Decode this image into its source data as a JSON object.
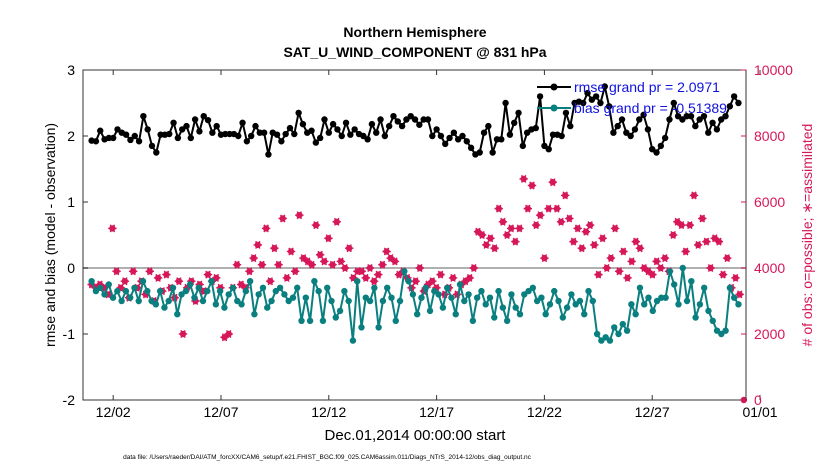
{
  "chart_data": {
    "type": "line",
    "title": [
      "Northern Hemisphere",
      "SAT_U_WIND_COMPONENT @ 831 hPa"
    ],
    "xlabel": "Dec.01,2014 00:00:00 start",
    "ylabel_left": "rmse and bias (model - observation)",
    "ylabel_right": "# of obs: o=possible; ∗=assimilated",
    "footer": "data file: /Users/raeder/DAI/ATM_forcXX/CAM6_setup/f.e21.FHIST_BGC.f09_025.CAM6assim.011/Diags_NTrS_2014-12/obs_diag_output.nc",
    "xlim": [
      0.6,
      31.35
    ],
    "x_ticks": [
      2,
      7,
      12,
      17,
      22,
      27,
      32
    ],
    "x_tick_labels": [
      "12/02",
      "12/07",
      "12/12",
      "12/17",
      "12/22",
      "12/27",
      "01/01"
    ],
    "ylim_left": [
      -2,
      3
    ],
    "y_ticks_left": [
      -2,
      -1,
      0,
      1,
      2,
      3
    ],
    "y_tick_labels_left": [
      "-2",
      "-1",
      "0",
      "1",
      "2",
      "3"
    ],
    "ylim_right": [
      0,
      10000
    ],
    "y_ticks_right": [
      0,
      2000,
      4000,
      6000,
      8000,
      10000
    ],
    "y_tick_labels_right": [
      "0",
      "2000",
      "4000",
      "6000",
      "8000",
      "10000"
    ],
    "zero_line": 0,
    "colors": {
      "rmse": "#000000",
      "bias": "#0a7f7f",
      "obs": "#d6185a",
      "zero": "#b0b0b0"
    },
    "legend": [
      {
        "label": "rmse grand pr = 2.0971",
        "series": "rmse"
      },
      {
        "label": "bias grand pr = -0.51389",
        "series": "bias"
      }
    ],
    "legend_position": "top-right",
    "series": [
      {
        "name": "rmse",
        "axis": "left",
        "values": [
          1.93,
          1.92,
          2.08,
          1.95,
          1.97,
          1.97,
          2.1,
          2.05,
          2.02,
          1.94,
          2.0,
          1.92,
          2.3,
          2.1,
          1.85,
          1.75,
          2.02,
          2.02,
          2.03,
          2.2,
          1.97,
          2.1,
          2.15,
          1.97,
          2.25,
          2.07,
          2.3,
          2.24,
          2.05,
          2.15,
          2.02,
          2.03,
          2.03,
          2.03,
          2.0,
          2.2,
          1.92,
          2.0,
          2.15,
          2.05,
          2.05,
          1.72,
          2.05,
          2.02,
          1.92,
          2.03,
          2.12,
          2.03,
          2.35,
          2.18,
          2.05,
          2.08,
          1.9,
          1.97,
          2.25,
          2.05,
          2.18,
          2.1,
          2.0,
          2.2,
          2.02,
          2.1,
          2.03,
          2.0,
          1.95,
          2.18,
          2.05,
          2.25,
          2.0,
          2.15,
          2.3,
          2.22,
          2.15,
          2.25,
          2.3,
          2.25,
          2.17,
          2.25,
          2.25,
          2.0,
          2.1,
          2.0,
          1.88,
          1.97,
          2.05,
          1.95,
          2.0,
          1.92,
          1.82,
          1.72,
          1.75,
          2.05,
          2.15,
          1.75,
          1.95,
          1.95,
          2.5,
          2.02,
          2.2,
          2.35,
          1.85,
          2.05,
          2.1,
          2.12,
          2.6,
          1.85,
          1.8,
          2.02,
          2.02,
          2.0,
          2.35,
          2.15,
          2.5,
          2.52,
          2.5,
          2.65,
          2.55,
          2.6,
          2.5,
          2.75,
          2.45,
          2.05,
          2.15,
          2.25,
          2.05,
          2.0,
          2.1,
          2.25,
          2.32,
          2.1,
          1.8,
          1.75,
          1.85,
          1.97,
          2.25,
          2.5,
          2.3,
          2.25,
          2.3,
          2.3,
          2.15,
          2.25,
          2.3,
          2.05,
          2.2,
          2.1,
          2.25,
          2.3,
          2.45,
          2.6,
          2.5
        ]
      },
      {
        "name": "bias",
        "axis": "left",
        "values": [
          -0.2,
          -0.35,
          -0.3,
          -0.4,
          -0.25,
          -0.45,
          -0.35,
          -0.5,
          -0.35,
          -0.45,
          -0.3,
          -0.5,
          -0.2,
          -0.35,
          -0.5,
          -0.55,
          -0.35,
          -0.6,
          -0.5,
          -0.3,
          -0.7,
          -0.4,
          -0.35,
          -0.25,
          -0.45,
          -0.3,
          -0.5,
          -0.35,
          -0.2,
          -0.55,
          -0.35,
          -0.6,
          -0.4,
          -0.3,
          -0.5,
          -0.55,
          -0.35,
          -0.2,
          -0.7,
          -0.4,
          -0.3,
          -0.6,
          -0.5,
          -0.35,
          -0.3,
          -0.4,
          -0.5,
          -0.45,
          -0.3,
          -0.8,
          -0.45,
          -0.8,
          -0.2,
          -0.35,
          -0.8,
          -0.3,
          -0.5,
          -0.75,
          -0.65,
          -0.35,
          -0.5,
          -1.1,
          -0.2,
          -0.9,
          -0.45,
          -0.5,
          -0.3,
          -0.9,
          -0.5,
          -0.3,
          -0.45,
          -0.8,
          -0.5,
          -0.05,
          -0.2,
          -0.4,
          -0.7,
          -0.45,
          -0.3,
          -0.65,
          -0.35,
          -0.4,
          -0.6,
          -0.3,
          -0.45,
          -0.7,
          -0.25,
          -0.5,
          -0.4,
          -0.8,
          -0.45,
          -0.35,
          -0.55,
          -0.45,
          -0.75,
          -0.35,
          -0.6,
          -0.8,
          -0.4,
          -0.6,
          -0.7,
          -0.4,
          -0.35,
          -0.3,
          -0.5,
          -0.45,
          -0.7,
          -0.55,
          -0.35,
          -0.5,
          -0.75,
          -0.6,
          -0.4,
          -0.55,
          -0.5,
          -0.7,
          -0.35,
          -0.5,
          -1.0,
          -1.1,
          -1.05,
          -1.1,
          -0.9,
          -1.0,
          -0.85,
          -0.95,
          -0.55,
          -0.7,
          -0.3,
          -0.55,
          -0.45,
          -0.65,
          -0.5,
          -0.45,
          -0.45,
          -0.05,
          -0.25,
          -0.55,
          0.0,
          -0.5,
          -0.2,
          -0.75,
          -0.55,
          -0.3,
          -0.65,
          -0.8,
          -0.95,
          -1.0,
          -0.95,
          -0.3,
          -0.45,
          -0.55
        ]
      },
      {
        "name": "obs_assimilated",
        "axis": "right",
        "marker": "asterisk",
        "values": [
          3500,
          3400,
          3500,
          3400,
          3200,
          5200,
          3900,
          3400,
          3600,
          3100,
          3900,
          3400,
          3600,
          3200,
          3900,
          3000,
          3700,
          3300,
          3800,
          3400,
          3100,
          3600,
          2000,
          3400,
          3600,
          3000,
          3500,
          3300,
          3800,
          3600,
          3700,
          3400,
          1900,
          2000,
          3400,
          4100,
          3500,
          3400,
          3900,
          4300,
          4700,
          4100,
          5200,
          3600,
          4600,
          4100,
          5500,
          3700,
          4500,
          3900,
          5600,
          4300,
          4200,
          4100,
          5300,
          4400,
          4200,
          4900,
          4100,
          5400,
          4200,
          4000,
          4600,
          3700,
          3900,
          3900,
          3700,
          4000,
          3600,
          3800,
          4100,
          4500,
          4300,
          4200,
          3800,
          3900,
          3700,
          3400,
          3600,
          4000,
          3300,
          3500,
          3600,
          3400,
          3800,
          3200,
          3400,
          3700,
          3200,
          3500,
          3600,
          3700,
          4000,
          5100,
          5000,
          4700,
          4900,
          4600,
          5800,
          5400,
          5000,
          5200,
          4800,
          5200,
          6700,
          5800,
          6500,
          5300,
          5600,
          4300,
          5800,
          6600,
          5800,
          5400,
          6200,
          5500,
          4800,
          5200,
          4600,
          5100,
          5300,
          4700,
          3800,
          4900,
          4000,
          4300,
          5200,
          3900,
          4500,
          3700,
          4200,
          4800,
          4600,
          4000,
          3900,
          3800,
          4200,
          4000,
          4300,
          3900,
          5000,
          5400,
          5300,
          4500,
          5300,
          6200,
          4700,
          5500,
          4800,
          4000,
          4900,
          4800,
          3800,
          4300,
          3400,
          3700,
          3200
        ]
      },
      {
        "name": "obs_possible",
        "axis": "right",
        "marker": "circle",
        "values": [
          3500,
          3400,
          3500,
          3400,
          3200,
          5200,
          3900,
          3400,
          3600,
          3100,
          3900,
          3400,
          3600,
          3200,
          3900,
          3000,
          3700,
          3300,
          3800,
          3400,
          3100,
          3600,
          2000,
          3400,
          3600,
          3000,
          3500,
          3300,
          3800,
          3600,
          3700,
          3400,
          1900,
          2000,
          3400,
          4100,
          3500,
          3400,
          3900,
          4300,
          4700,
          4100,
          5200,
          3600,
          4600,
          4100,
          5500,
          3700,
          4500,
          3900,
          5600,
          4300,
          4200,
          4100,
          5300,
          4400,
          4200,
          4900,
          4100,
          5400,
          4200,
          4000,
          4600,
          3700,
          3900,
          3900,
          3700,
          4000,
          3600,
          3800,
          4100,
          4500,
          4300,
          4200,
          3800,
          3900,
          3700,
          3400,
          3600,
          4000,
          3300,
          3500,
          3600,
          3400,
          3800,
          3200,
          3400,
          3700,
          3200,
          3500,
          3600,
          3700,
          4000,
          5100,
          5000,
          4700,
          4900,
          4600,
          5800,
          5400,
          5000,
          5200,
          4800,
          5200,
          6700,
          5800,
          6500,
          5300,
          5600,
          4300,
          5800,
          6600,
          5800,
          5400,
          6200,
          5500,
          4800,
          5200,
          4600,
          5100,
          5300,
          4700,
          3800,
          4900,
          4000,
          4300,
          5200,
          3900,
          4500,
          3700,
          4200,
          4800,
          4600,
          4000,
          3900,
          3800,
          4200,
          4000,
          4300,
          3900,
          5000,
          5400,
          5300,
          4500,
          5300,
          6200,
          4700,
          5500,
          4800,
          4000,
          4900,
          4800,
          3800,
          4300,
          3400,
          3700,
          3200,
          0
        ]
      }
    ]
  }
}
